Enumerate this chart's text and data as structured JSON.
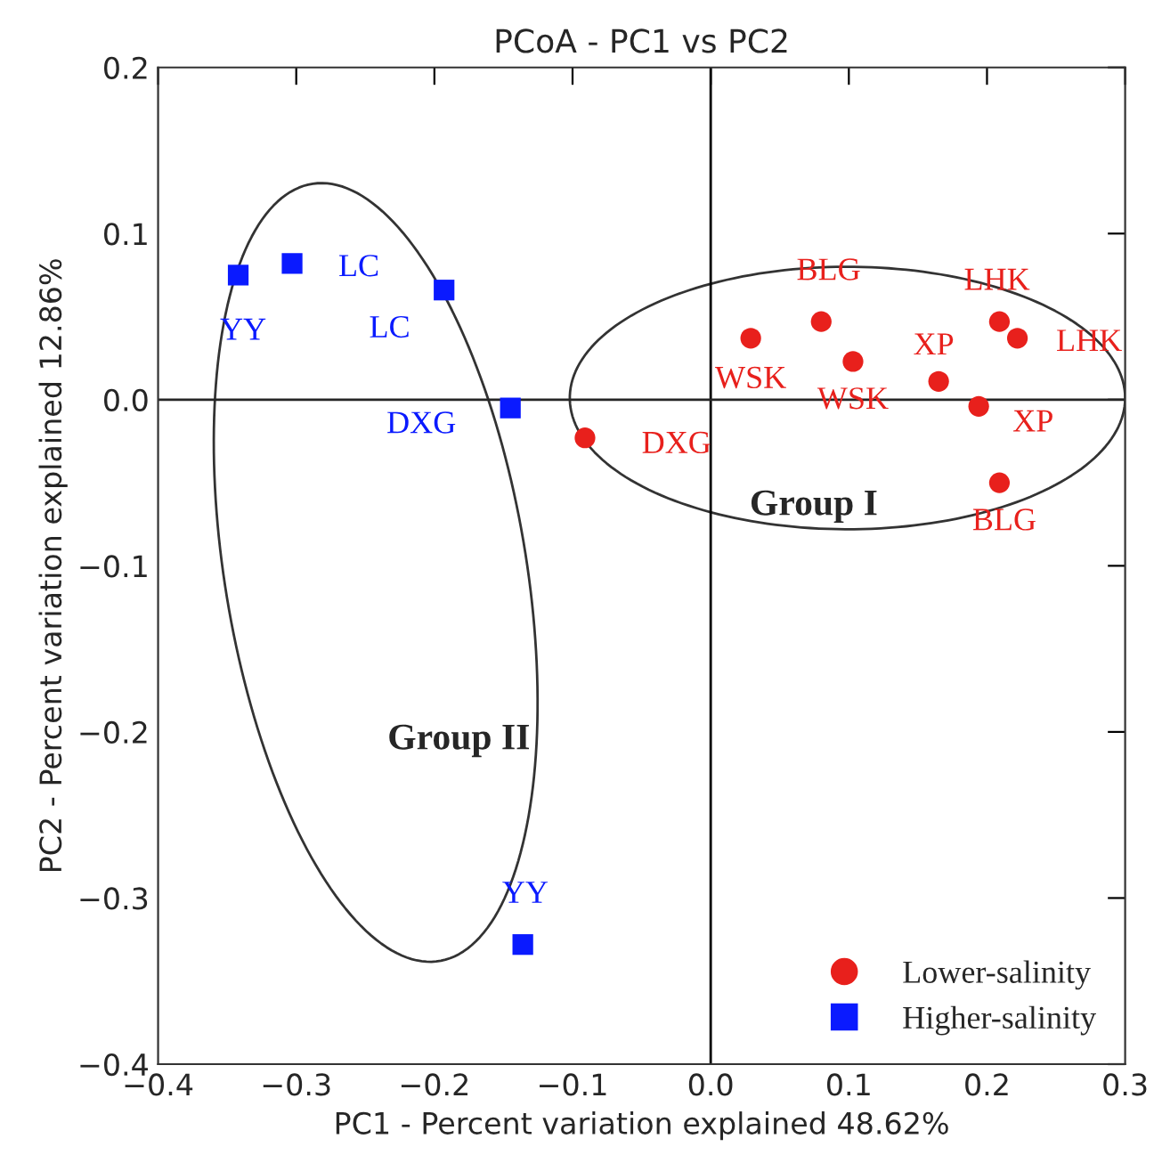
{
  "chart_data": {
    "type": "scatter",
    "title": "PCoA - PC1 vs PC2",
    "xlabel": "PC1 - Percent variation explained 48.62%",
    "ylabel": "PC2 - Percent variation explained 12.86%",
    "xlim": [
      -0.4,
      0.3
    ],
    "ylim": [
      -0.4,
      0.2
    ],
    "xticks": [
      {
        "value": -0.4,
        "label": "−0.4"
      },
      {
        "value": -0.3,
        "label": "−0.3"
      },
      {
        "value": -0.2,
        "label": "−0.2"
      },
      {
        "value": -0.1,
        "label": "−0.1"
      },
      {
        "value": 0,
        "label": "0.0"
      },
      {
        "value": 0.1,
        "label": "0.1"
      },
      {
        "value": 0.2,
        "label": "0.2"
      },
      {
        "value": 0.3,
        "label": "0.3"
      }
    ],
    "yticks": [
      {
        "value": -0.4,
        "label": "−0.4"
      },
      {
        "value": -0.3,
        "label": "−0.3"
      },
      {
        "value": -0.2,
        "label": "−0.2"
      },
      {
        "value": -0.1,
        "label": "−0.1"
      },
      {
        "value": 0,
        "label": "0.0"
      },
      {
        "value": 0.1,
        "label": "0.1"
      },
      {
        "value": 0.2,
        "label": "0.2"
      }
    ],
    "series": [
      {
        "name": "Lower-salinity",
        "color": "#e8201c",
        "marker": "circle",
        "x": [
          -0.091,
          0.029,
          0.08,
          0.103,
          0.165,
          0.194,
          0.209,
          0.222,
          0.209
        ],
        "values": [
          -0.023,
          0.037,
          0.047,
          0.023,
          0.011,
          -0.004,
          0.047,
          0.037,
          -0.05
        ],
        "value_labels": [
          "DXG",
          "WSK",
          "BLG",
          "WSK",
          "XP",
          "XP",
          "LHK",
          "LHK",
          "BLG"
        ]
      },
      {
        "name": "Higher-salinity",
        "color": "#0a1aff",
        "marker": "square",
        "x": [
          -0.342,
          -0.303,
          -0.193,
          -0.145,
          -0.136
        ],
        "values": [
          0.075,
          0.082,
          0.066,
          -0.005,
          -0.328
        ],
        "value_labels": [
          "YY",
          "LC",
          "LC",
          "DXG",
          "YY"
        ]
      }
    ],
    "ref_lines": [
      {
        "axis": "x",
        "value": 0,
        "color": "#000000"
      },
      {
        "axis": "y",
        "value": 0,
        "color": "#262626"
      }
    ],
    "annotations": [
      "Group I",
      "Group II"
    ],
    "legend": "bottom right",
    "grid": false
  }
}
